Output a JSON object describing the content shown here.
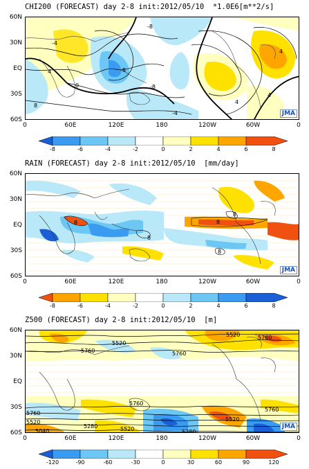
{
  "panels": [
    {
      "id": "chi200",
      "title": "CHI200 (FORECAST) day 2-8 init:2012/05/10  *1.0E6[m**2/s]",
      "lat_labels": [
        "60N",
        "30N",
        "EQ",
        "30S",
        "60S"
      ],
      "lon_labels": [
        "0",
        "60E",
        "120E",
        "180",
        "120W",
        "60W",
        "0"
      ],
      "contour_labels": [
        "-8",
        "-4",
        "-8",
        "0",
        "4",
        "8",
        "-4",
        "-8",
        "4",
        "4",
        "4"
      ],
      "logo": "JMA",
      "colorbar": {
        "ticks": [
          "-8",
          "-6",
          "-4",
          "-2",
          "0",
          "2",
          "4",
          "6",
          "8"
        ],
        "colors": [
          "#1a5fd6",
          "#3a9bf0",
          "#6cc7f5",
          "#b9e8f8",
          "#ffffff",
          "#ffffc0",
          "#ffe100",
          "#ffa500",
          "#f05010"
        ]
      }
    },
    {
      "id": "rain",
      "title": "RAIN (FORECAST) day 2-8 init:2012/05/10  [mm/day]",
      "lat_labels": [
        "60N",
        "30N",
        "EQ",
        "30S",
        "60S"
      ],
      "lon_labels": [
        "0",
        "60E",
        "120E",
        "180",
        "120W",
        "60W",
        "0"
      ],
      "contour_labels": [
        "8",
        "8",
        "8",
        "8",
        "8"
      ],
      "logo": "JMA",
      "colorbar": {
        "ticks": [
          "-8",
          "-6",
          "-4",
          "-2",
          "0",
          "2",
          "4",
          "6",
          "8"
        ],
        "colors": [
          "#f05010",
          "#ffa500",
          "#ffe100",
          "#ffffc0",
          "#ffffff",
          "#b9e8f8",
          "#6cc7f5",
          "#3a9bf0",
          "#1a5fd6"
        ]
      }
    },
    {
      "id": "z500",
      "title": "Z500 (FORECAST) day 2-8 init:2012/05/10  [m]",
      "lat_labels": [
        "60N",
        "30N",
        "EQ",
        "30S",
        "60S"
      ],
      "lon_labels": [
        "0",
        "60E",
        "120E",
        "180",
        "120W",
        "60W",
        "0"
      ],
      "contour_labels": [
        "5760",
        "5520",
        "5760",
        "5520",
        "5760",
        "5760",
        "5760",
        "5760",
        "5520",
        "5280",
        "5520",
        "5520",
        "5040",
        "5280"
      ],
      "logo": "JMA",
      "colorbar": {
        "ticks": [
          "-120",
          "-90",
          "-60",
          "-30",
          "0",
          "30",
          "60",
          "90",
          "120"
        ],
        "colors": [
          "#1a5fd6",
          "#3a9bf0",
          "#6cc7f5",
          "#b9e8f8",
          "#ffffff",
          "#ffffc0",
          "#ffe100",
          "#ffa500",
          "#f05010"
        ]
      }
    }
  ]
}
